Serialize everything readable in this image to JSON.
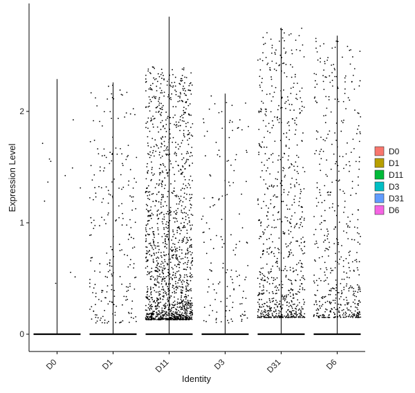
{
  "chart_data": {
    "type": "violin-jitter",
    "xlabel": "Identity",
    "ylabel": "Expression Level",
    "categories": [
      "D0",
      "D1",
      "D11",
      "D3",
      "D31",
      "D6"
    ],
    "y_ticks": [
      0,
      1,
      2
    ],
    "ylim": [
      -0.08,
      2.9
    ],
    "legend": {
      "placement": "right",
      "entries": [
        {
          "name": "D0",
          "color": "#F8766D"
        },
        {
          "name": "D1",
          "color": "#B79F00"
        },
        {
          "name": "D11",
          "color": "#00BA38"
        },
        {
          "name": "D3",
          "color": "#00BFC4"
        },
        {
          "name": "D31",
          "color": "#619CFF"
        },
        {
          "name": "D6",
          "color": "#F564E3"
        }
      ]
    },
    "series": [
      {
        "name": "D0",
        "max": 2.29,
        "nonzero_points": 12,
        "typical_range": [
          0.4,
          2.3
        ]
      },
      {
        "name": "D1",
        "max": 2.26,
        "nonzero_points": 240,
        "typical_range": [
          0.1,
          2.25
        ]
      },
      {
        "name": "D11",
        "max": 2.85,
        "nonzero_points": 1500,
        "typical_range": [
          0.13,
          2.4
        ]
      },
      {
        "name": "D3",
        "max": 2.16,
        "nonzero_points": 150,
        "typical_range": [
          0.1,
          2.15
        ]
      },
      {
        "name": "D31",
        "max": 2.75,
        "nonzero_points": 780,
        "typical_range": [
          0.15,
          2.75
        ]
      },
      {
        "name": "D6",
        "max": 2.68,
        "nonzero_points": 520,
        "typical_range": [
          0.15,
          2.68
        ]
      }
    ],
    "grid": false,
    "point_color": "#000000",
    "line_color": "#000000"
  }
}
